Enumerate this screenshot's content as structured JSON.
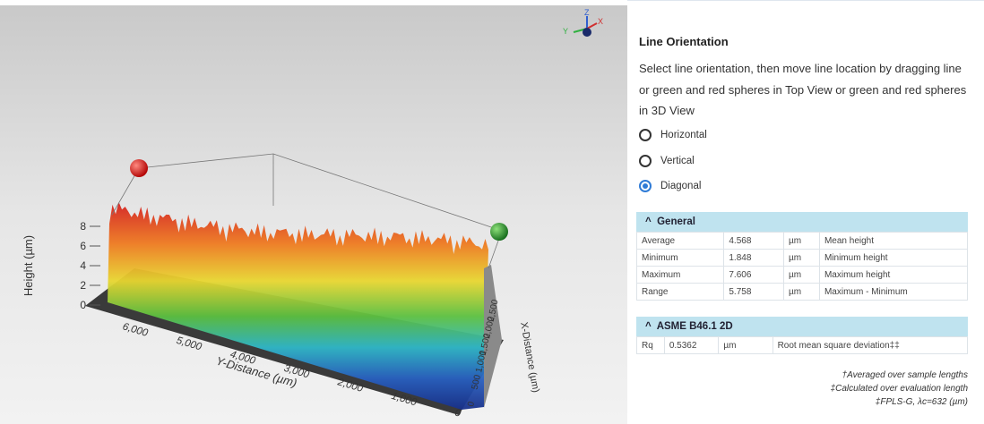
{
  "view3d": {
    "gizmo": {
      "z": "Z",
      "x": "X",
      "y": "Y"
    },
    "height_axis": {
      "label": "Height (µm)",
      "ticks": [
        "0",
        "2",
        "4",
        "6",
        "8"
      ]
    },
    "y_axis": {
      "label": "Y-Distance (µm)",
      "ticks": [
        "6,000",
        "5,000",
        "4,000",
        "3,000",
        "2,000",
        "1,000",
        "0"
      ]
    },
    "x_axis": {
      "label": "X-Distance (µm)",
      "ticks": [
        "0",
        "500",
        "1,000",
        "1,500",
        "2,000",
        "2,500"
      ]
    }
  },
  "panel": {
    "title": "Line Orientation",
    "description": [
      "Select line orientation, then move line location by dragging line",
      "or green and red spheres in Top View or green and red spheres",
      "in 3D View"
    ],
    "options": [
      {
        "label": "Horizontal",
        "selected": false
      },
      {
        "label": "Vertical",
        "selected": false
      },
      {
        "label": "Diagonal",
        "selected": true
      }
    ],
    "general": {
      "title": "General",
      "rows": [
        [
          "Average",
          "4.568",
          "µm",
          "Mean height"
        ],
        [
          "Minimum",
          "1.848",
          "µm",
          "Minimum height"
        ],
        [
          "Maximum",
          "7.606",
          "µm",
          "Maximum height"
        ],
        [
          "Range",
          "5.758",
          "µm",
          "Maximum - Minimum"
        ]
      ]
    },
    "asme": {
      "title": "ASME B46.1 2D",
      "rows": [
        [
          "Rq",
          "0.5362",
          "µm",
          "Root mean square deviation‡‡"
        ]
      ]
    },
    "footnotes": [
      "†Averaged over sample lengths",
      "‡Calculated over evaluation length",
      "‡FPLS-G, λc=632 (µm)"
    ]
  }
}
